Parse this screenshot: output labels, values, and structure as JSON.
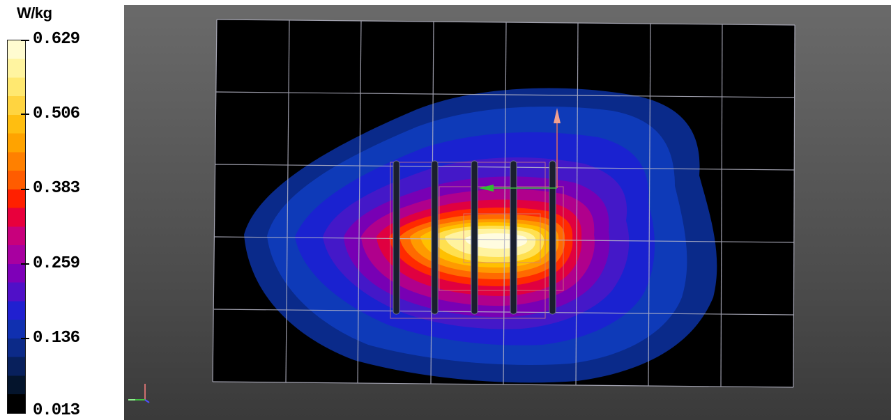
{
  "legend": {
    "unit": "W/kg",
    "ticks": [
      {
        "label": "0.629",
        "value": 0.629
      },
      {
        "label": "0.506",
        "value": 0.506
      },
      {
        "label": "0.383",
        "value": 0.383
      },
      {
        "label": "0.259",
        "value": 0.259
      },
      {
        "label": "0.136",
        "value": 0.136
      },
      {
        "label": "0.013",
        "value": 0.013
      }
    ],
    "color_bands": [
      "#fffbd0",
      "#fff4a0",
      "#ffe870",
      "#ffd440",
      "#ffbe10",
      "#ffa300",
      "#ff8000",
      "#ff5c00",
      "#ff2000",
      "#e8003c",
      "#c8007c",
      "#a800a0",
      "#7e00b8",
      "#5010c8",
      "#2020d0",
      "#1030b0",
      "#0c2a88",
      "#08205c",
      "#04142c",
      "#000000"
    ]
  },
  "viewport": {
    "background_top": "#6a6a6a",
    "background_bottom": "#3a3a3a",
    "axis_triad_colors": {
      "x": "#2fc42f",
      "y": "#4040ff",
      "z": "#e06060"
    }
  }
}
